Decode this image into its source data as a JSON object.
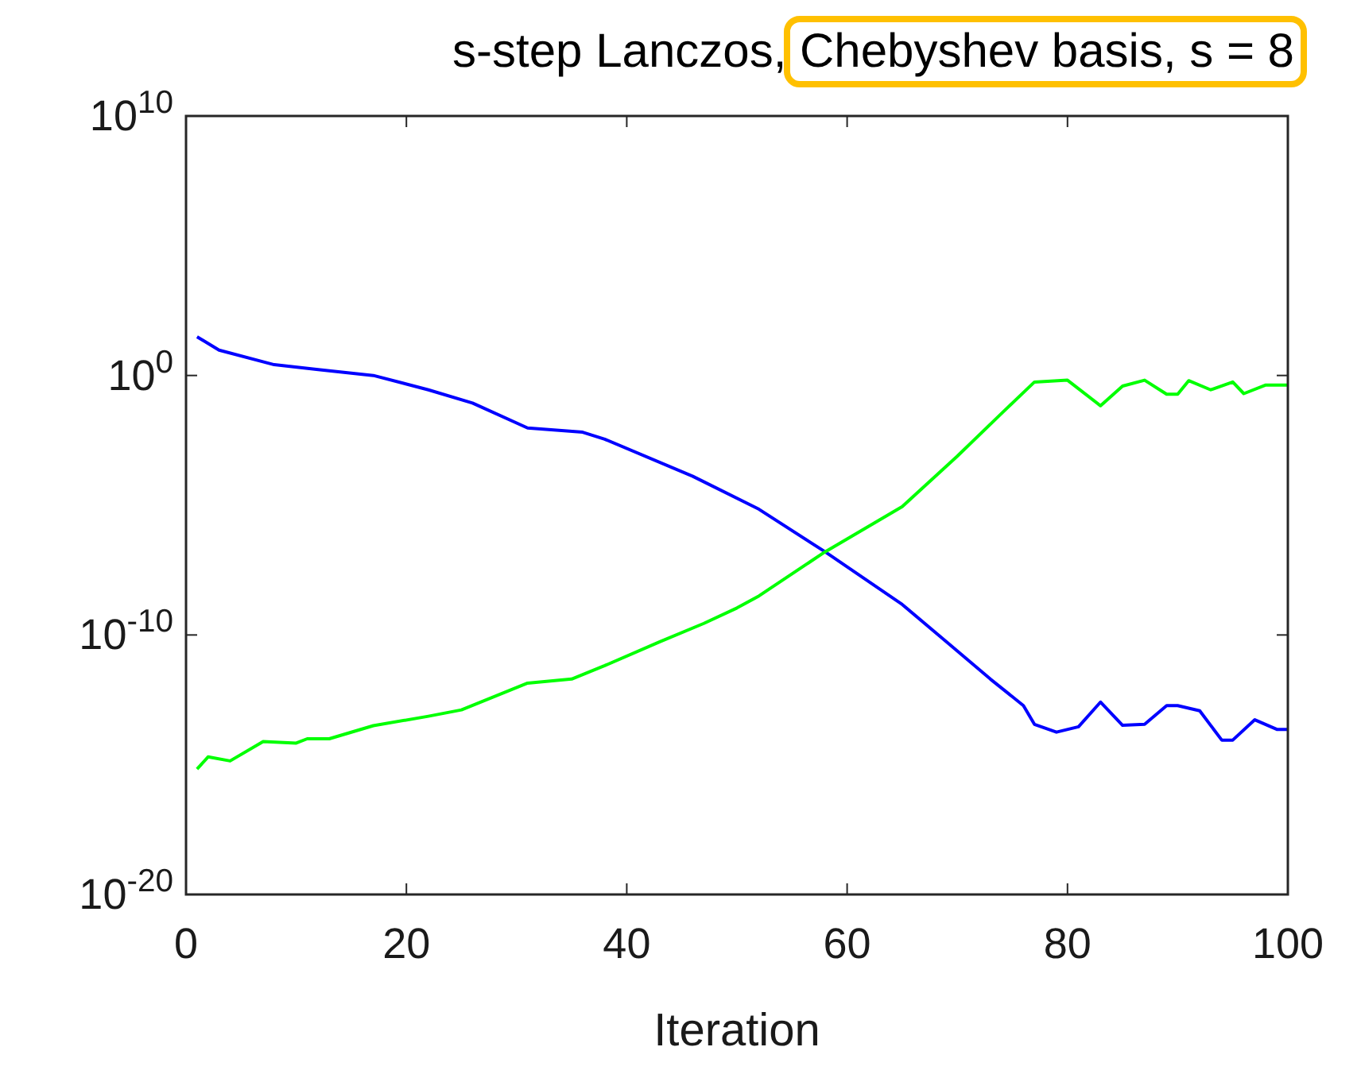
{
  "chart_data": {
    "type": "line",
    "title": "s-step Lanczos, Chebyshev basis, s = 8",
    "xlabel": "Iteration",
    "log": "y",
    "grid": false,
    "xlim": [
      0,
      100
    ],
    "xticks": [
      0,
      20,
      40,
      60,
      80,
      100
    ],
    "ylim": [
      1e-20,
      10000000000.0
    ],
    "yticks": [
      {
        "value": 1e-20,
        "label": "10$^{-20}$"
      },
      {
        "value": 1e-10,
        "label": "10$^{-10}$"
      },
      {
        "value": 1,
        "label": "10$^{0}$"
      },
      {
        "value": 10000000000.0,
        "label": "10$^{10}$"
      }
    ],
    "series": [
      {
        "color": "#0000ff",
        "x": [
          1,
          3,
          8,
          12,
          17,
          22,
          26,
          31,
          36,
          38,
          46,
          52,
          58,
          65,
          69,
          73,
          76,
          77,
          79,
          81,
          83,
          85,
          87,
          89,
          90,
          92,
          94,
          95,
          97,
          99,
          100
        ],
        "values": [
          31,
          9.5,
          2.6,
          1.7,
          1,
          0.28,
          0.087,
          0.0095,
          0.0065,
          0.0035,
          0.00013,
          7e-06,
          1.6e-07,
          1.5e-09,
          5.5e-11,
          2e-12,
          1.9e-13,
          3.6e-14,
          1.8e-14,
          2.9e-14,
          2.6e-13,
          3.3e-14,
          3.6e-14,
          1.9e-13,
          1.9e-13,
          1.2e-13,
          8.9e-15,
          8.9e-15,
          5.4e-14,
          2.3e-14,
          2.3e-14
        ]
      },
      {
        "color": "#00ff00",
        "x": [
          1,
          2,
          4,
          7,
          10,
          11,
          13,
          17,
          22,
          25,
          31,
          35,
          38,
          43,
          47,
          50,
          52,
          58,
          65,
          70,
          74,
          77,
          80,
          83,
          85,
          87,
          89,
          90,
          91,
          93,
          95,
          96,
          98,
          100
        ],
        "values": [
          6.8e-16,
          2e-15,
          1.4e-15,
          7.8e-15,
          6.8e-15,
          1e-14,
          1e-14,
          3.2e-14,
          7.4e-14,
          1.3e-13,
          1.4e-12,
          2e-12,
          6.6e-12,
          5.5e-11,
          2.8e-10,
          1.1e-09,
          3.2e-09,
          1.6e-07,
          8.9e-06,
          0.00078,
          0.034,
          0.56,
          0.66,
          0.068,
          0.39,
          0.66,
          0.19,
          0.19,
          0.63,
          0.28,
          0.56,
          0.2,
          0.43,
          0.43
        ]
      }
    ]
  }
}
